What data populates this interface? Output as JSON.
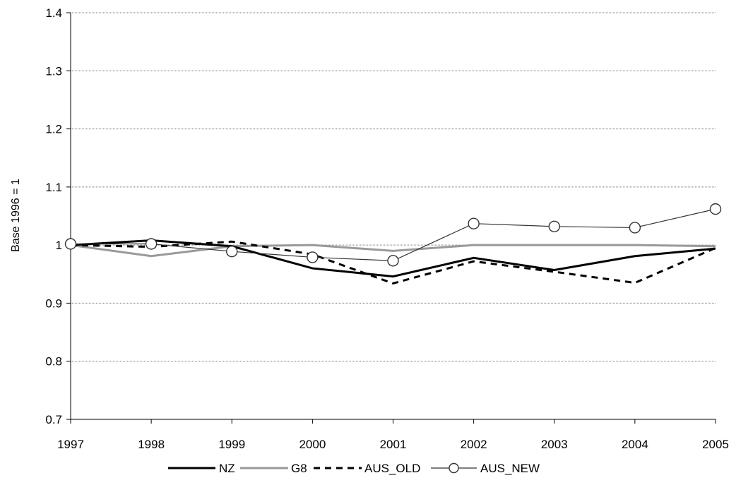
{
  "chart_data": {
    "type": "line",
    "title": "",
    "xlabel": "",
    "ylabel": "Base 1996 = 1",
    "x": [
      "1997",
      "1998",
      "1999",
      "2000",
      "2001",
      "2002",
      "2003",
      "2004",
      "2005"
    ],
    "ylim": [
      0.7,
      1.4
    ],
    "yticks": [
      "0.7",
      "0.8",
      "0.9",
      "1",
      "1.1",
      "1.2",
      "1.3",
      "1.4"
    ],
    "grid": true,
    "legend_position": "bottom",
    "series": [
      {
        "name": "NZ",
        "values": [
          1.0,
          1.008,
          0.998,
          0.96,
          0.946,
          0.978,
          0.957,
          0.981,
          0.994
        ],
        "color": "#000000",
        "style": "solid-thick"
      },
      {
        "name": "G8",
        "values": [
          1.0,
          0.981,
          0.998,
          1.0,
          0.99,
          1.0,
          1.0,
          1.0,
          0.998
        ],
        "color": "#999999",
        "style": "solid-thick"
      },
      {
        "name": "AUS_OLD",
        "values": [
          1.0,
          0.997,
          1.006,
          0.984,
          0.934,
          0.972,
          0.954,
          0.935,
          0.995
        ],
        "color": "#000000",
        "style": "dashed"
      },
      {
        "name": "AUS_NEW",
        "values": [
          1.002,
          1.002,
          0.989,
          0.979,
          0.973,
          1.037,
          1.032,
          1.03,
          1.062
        ],
        "color": "#333333",
        "style": "thin-circle"
      }
    ]
  }
}
